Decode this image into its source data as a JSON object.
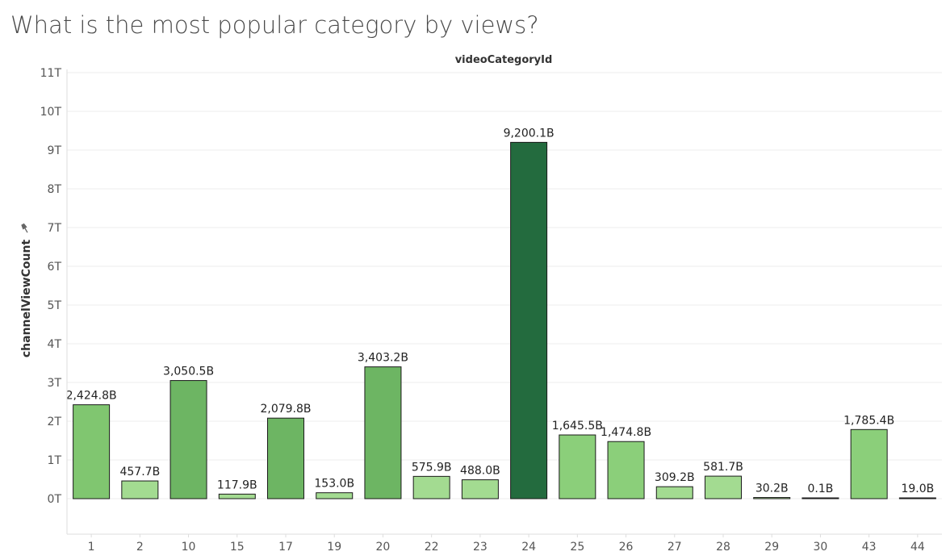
{
  "page": {
    "title": "What is the most popular category by views?"
  },
  "colors": {
    "dark": "#236b3e",
    "mid": "#6db563",
    "light": "#80c670",
    "lighter": "#a3db91",
    "gridline": "#eeeeee",
    "axis": "#dddddd"
  },
  "chart_data": {
    "type": "bar",
    "title": "What is the most popular category by views?",
    "xlabel": "videoCategoryId",
    "ylabel": "channelViewCount",
    "ylabel_icon": "pin-icon",
    "ylim": [
      0,
      11
    ],
    "y_unit": "T",
    "y_ticks": [
      "0T",
      "1T",
      "2T",
      "3T",
      "4T",
      "5T",
      "6T",
      "7T",
      "8T",
      "9T",
      "10T",
      "11T"
    ],
    "grid": true,
    "categories": [
      "1",
      "2",
      "10",
      "15",
      "17",
      "19",
      "20",
      "22",
      "23",
      "24",
      "25",
      "26",
      "27",
      "28",
      "29",
      "30",
      "43",
      "44"
    ],
    "values": [
      2424.8,
      457.7,
      3050.5,
      117.9,
      2079.8,
      153.0,
      3403.2,
      575.9,
      488.0,
      9200.1,
      1645.5,
      1474.8,
      309.2,
      581.7,
      30.2,
      0.1,
      1785.4,
      19.0
    ],
    "value_unit": "B",
    "data_labels": [
      "2,424.8B",
      "457.7B",
      "3,050.5B",
      "117.9B",
      "2,079.8B",
      "153.0B",
      "3,403.2B",
      "575.9B",
      "488.0B",
      "9,200.1B",
      "1,645.5B",
      "1,474.8B",
      "309.2B",
      "581.7B",
      "30.2B",
      "0.1B",
      "1,785.4B",
      "19.0B"
    ],
    "bar_colors": [
      "#80c670",
      "#a3db91",
      "#6db563",
      "#a3db91",
      "#6db563",
      "#a3db91",
      "#6db563",
      "#a3db91",
      "#a3db91",
      "#236b3e",
      "#8bcf7a",
      "#8bcf7a",
      "#a3db91",
      "#a3db91",
      "#a3db91",
      "#a3db91",
      "#8bcf7a",
      "#a3db91"
    ]
  }
}
